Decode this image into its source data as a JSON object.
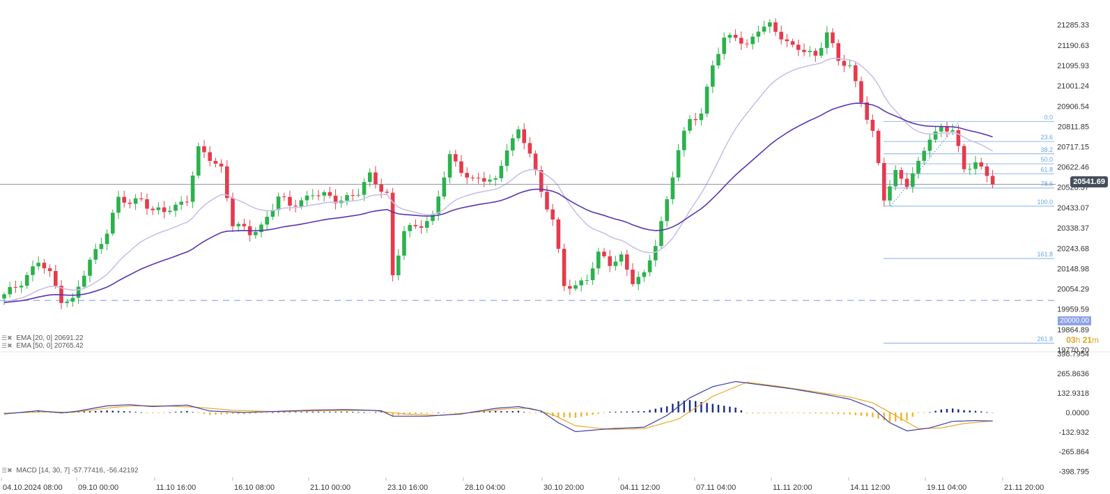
{
  "colors": {
    "bull": "#2bb24c",
    "bear": "#e53b4c",
    "ema20": "#c9c0e8",
    "ema50": "#5a33b0",
    "fib": "#6aa2e6",
    "macd_line": "#3c3ca8",
    "signal_line": "#e9a825",
    "hist_pos": "#1a2a8c",
    "hist_neg": "#f0b52a",
    "level_dash": "#aab4ee"
  },
  "chart_data": [
    {
      "type": "candlestick",
      "title": "",
      "y_ticks": [
        "21285.33",
        "21190.63",
        "21095.93",
        "21001.24",
        "20906.54",
        "20811.85",
        "20717.15",
        "20622.46",
        "20528.37",
        "20433.07",
        "20338.37",
        "20243.68",
        "20148.98",
        "20054.29",
        "19959.59",
        "19864.89",
        "19770.20"
      ],
      "ylim": [
        19770.2,
        21330
      ],
      "x_ticks": [
        "04.10.2024 08:00",
        "09.10 00:00",
        "11.10 16:00",
        "16.10 08:00",
        "21.10 00:00",
        "23.10 16:00",
        "28.10 04:00",
        "30.10 20:00",
        "04.11 12:00",
        "07.11 04:00",
        "11.11 20:00",
        "14.11 12:00",
        "19.11 04:00",
        "21.11 20:00"
      ],
      "current_price": "20541.69",
      "key_level": "20000.00",
      "candle_countdown": {
        "hours": "03",
        "h_unit": "h",
        "minutes": "21",
        "m_unit": "m"
      },
      "indicators": [
        {
          "name": "EMA",
          "params": "[20, 0]",
          "value": "20691.22"
        },
        {
          "name": "EMA",
          "params": "[50, 0]",
          "value": "20765.42"
        }
      ],
      "fibonacci": {
        "high": 20835,
        "low": 20440,
        "levels": [
          {
            "label": "0.0",
            "ratio": 0.0
          },
          {
            "label": "23.6",
            "ratio": 0.236
          },
          {
            "label": "38.2",
            "ratio": 0.382
          },
          {
            "label": "50.0",
            "ratio": 0.5
          },
          {
            "label": "61.8",
            "ratio": 0.618
          },
          {
            "label": "78.6",
            "ratio": 0.786
          },
          {
            "label": "100.0",
            "ratio": 1.0
          },
          {
            "label": "161.8",
            "ratio": 1.618
          },
          {
            "label": "261.8",
            "ratio": 2.618
          }
        ]
      },
      "waypoints": [
        [
          0,
          20020
        ],
        [
          3,
          20090
        ],
        [
          6,
          20180
        ],
        [
          8,
          20120
        ],
        [
          10,
          20010
        ],
        [
          12,
          20000
        ],
        [
          15,
          20180
        ],
        [
          18,
          20330
        ],
        [
          20,
          20470
        ],
        [
          22,
          20450
        ],
        [
          24,
          20480
        ],
        [
          26,
          20420
        ],
        [
          28,
          20410
        ],
        [
          30,
          20440
        ],
        [
          32,
          20480
        ],
        [
          34,
          20700
        ],
        [
          38,
          20620
        ],
        [
          40,
          20360
        ],
        [
          43,
          20310
        ],
        [
          45,
          20350
        ],
        [
          48,
          20480
        ],
        [
          50,
          20440
        ],
        [
          54,
          20500
        ],
        [
          58,
          20470
        ],
        [
          62,
          20500
        ],
        [
          64,
          20580
        ],
        [
          67,
          20500
        ],
        [
          68,
          20110
        ],
        [
          70,
          20320
        ],
        [
          75,
          20390
        ],
        [
          78,
          20670
        ],
        [
          82,
          20560
        ],
        [
          86,
          20560
        ],
        [
          88,
          20720
        ],
        [
          90,
          20780
        ],
        [
          92,
          20690
        ],
        [
          94,
          20510
        ],
        [
          96,
          20380
        ],
        [
          98,
          20060
        ],
        [
          100,
          20070
        ],
        [
          102,
          20110
        ],
        [
          104,
          20210
        ],
        [
          106,
          20170
        ],
        [
          108,
          20210
        ],
        [
          110,
          20090
        ],
        [
          112,
          20110
        ],
        [
          114,
          20270
        ],
        [
          116,
          20470
        ],
        [
          118,
          20700
        ],
        [
          120,
          20840
        ],
        [
          122,
          20880
        ],
        [
          124,
          21100
        ],
        [
          126,
          21210
        ],
        [
          128,
          21240
        ],
        [
          130,
          21190
        ],
        [
          132,
          21260
        ],
        [
          134,
          21280
        ],
        [
          136,
          21240
        ],
        [
          138,
          21180
        ],
        [
          140,
          21160
        ],
        [
          142,
          21140
        ],
        [
          144,
          21260
        ],
        [
          146,
          21110
        ],
        [
          148,
          21090
        ],
        [
          150,
          20940
        ],
        [
          152,
          20780
        ],
        [
          154,
          20470
        ],
        [
          156,
          20600
        ],
        [
          158,
          20550
        ],
        [
          160,
          20630
        ],
        [
          162,
          20760
        ],
        [
          164,
          20810
        ],
        [
          166,
          20800
        ],
        [
          168,
          20600
        ],
        [
          170,
          20650
        ],
        [
          172,
          20590
        ],
        [
          173,
          20541
        ]
      ]
    },
    {
      "type": "histogram+line",
      "title": "",
      "indicator": {
        "name": "MACD",
        "params": "[14, 30, 7]",
        "macd": "-57.77416",
        "signal": "-56.42192"
      },
      "y_ticks": [
        "398.7954",
        "265.8636",
        "132.9318",
        "0.0000",
        "-132.932",
        "-265.864",
        "-398.795"
      ],
      "ylim": [
        -398.795,
        398.7954
      ],
      "macd_waypoints": [
        [
          0,
          -10
        ],
        [
          6,
          12
        ],
        [
          10,
          -3
        ],
        [
          13,
          10
        ],
        [
          18,
          45
        ],
        [
          22,
          53
        ],
        [
          26,
          40
        ],
        [
          32,
          50
        ],
        [
          36,
          10
        ],
        [
          42,
          0
        ],
        [
          48,
          8
        ],
        [
          54,
          16
        ],
        [
          60,
          20
        ],
        [
          66,
          12
        ],
        [
          68,
          -25
        ],
        [
          74,
          -25
        ],
        [
          80,
          -10
        ],
        [
          86,
          28
        ],
        [
          90,
          40
        ],
        [
          94,
          10
        ],
        [
          97,
          -70
        ],
        [
          100,
          -130
        ],
        [
          106,
          -110
        ],
        [
          112,
          -100
        ],
        [
          116,
          -20
        ],
        [
          120,
          100
        ],
        [
          124,
          175
        ],
        [
          128,
          210
        ],
        [
          132,
          190
        ],
        [
          138,
          160
        ],
        [
          144,
          120
        ],
        [
          148,
          90
        ],
        [
          152,
          30
        ],
        [
          155,
          -70
        ],
        [
          158,
          -125
        ],
        [
          162,
          -105
        ],
        [
          166,
          -60
        ],
        [
          170,
          -55
        ],
        [
          173,
          -58
        ]
      ],
      "signal_waypoints": [
        [
          0,
          -5
        ],
        [
          8,
          5
        ],
        [
          12,
          0
        ],
        [
          18,
          30
        ],
        [
          22,
          45
        ],
        [
          28,
          45
        ],
        [
          34,
          35
        ],
        [
          40,
          15
        ],
        [
          48,
          5
        ],
        [
          56,
          12
        ],
        [
          64,
          15
        ],
        [
          70,
          -10
        ],
        [
          76,
          -20
        ],
        [
          82,
          0
        ],
        [
          88,
          25
        ],
        [
          92,
          30
        ],
        [
          96,
          -15
        ],
        [
          100,
          -90
        ],
        [
          106,
          -115
        ],
        [
          112,
          -110
        ],
        [
          118,
          -45
        ],
        [
          124,
          110
        ],
        [
          130,
          205
        ],
        [
          136,
          175
        ],
        [
          142,
          140
        ],
        [
          148,
          105
        ],
        [
          152,
          65
        ],
        [
          156,
          -20
        ],
        [
          160,
          -110
        ],
        [
          164,
          -105
        ],
        [
          168,
          -75
        ],
        [
          173,
          -56
        ]
      ]
    }
  ]
}
